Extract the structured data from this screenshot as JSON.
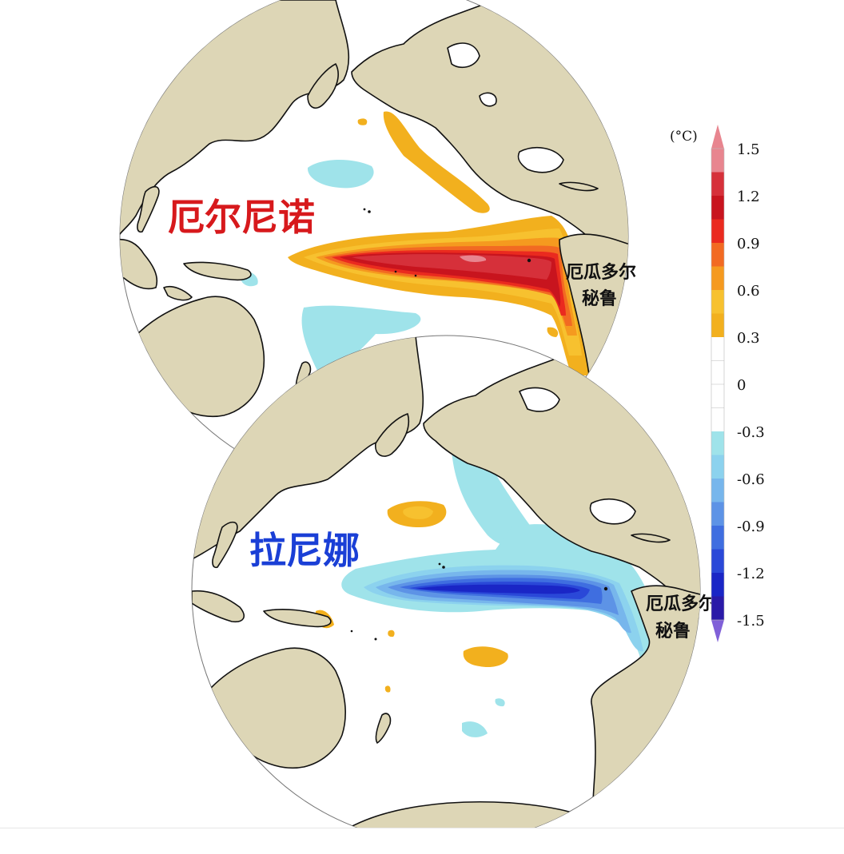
{
  "maps": [
    {
      "id": "el-nino",
      "title": "厄尔尼诺",
      "title_color": "#d7191c",
      "place_labels": [
        "厄瓜多尔",
        "秘鲁"
      ]
    },
    {
      "id": "la-nina",
      "title": "拉尼娜",
      "title_color": "#1a3fd6",
      "place_labels": [
        "厄瓜多尔",
        "秘鲁"
      ]
    }
  ],
  "colorbar": {
    "unit": "(°C)",
    "tick_labels": [
      "1.5",
      "1.2",
      "0.9",
      "0.6",
      "0.3",
      "0",
      "-0.3",
      "-0.6",
      "-0.9",
      "-1.2",
      "-1.5"
    ],
    "tick_values": [
      1.5,
      1.2,
      0.9,
      0.6,
      0.3,
      0,
      -0.3,
      -0.6,
      -0.9,
      -1.2,
      -1.5
    ],
    "levels_top_to_bottom": [
      {
        "range": [
          1.35,
          1.5
        ],
        "color": "#e8858f"
      },
      {
        "range": [
          1.2,
          1.35
        ],
        "color": "#d6303a"
      },
      {
        "range": [
          1.05,
          1.2
        ],
        "color": "#c8141e"
      },
      {
        "range": [
          0.9,
          1.05
        ],
        "color": "#ea2a1f"
      },
      {
        "range": [
          0.75,
          0.9
        ],
        "color": "#f26a22"
      },
      {
        "range": [
          0.6,
          0.75
        ],
        "color": "#f59a1f"
      },
      {
        "range": [
          0.45,
          0.6
        ],
        "color": "#f7c12f"
      },
      {
        "range": [
          0.3,
          0.45
        ],
        "color": "#f2b01e"
      },
      {
        "range": [
          -0.3,
          0.3
        ],
        "color": "#ffffff"
      },
      {
        "range": [
          -0.45,
          -0.3
        ],
        "color": "#9fe3ea"
      },
      {
        "range": [
          -0.6,
          -0.45
        ],
        "color": "#8cd2ee"
      },
      {
        "range": [
          -0.75,
          -0.6
        ],
        "color": "#77b6ec"
      },
      {
        "range": [
          -0.9,
          -0.75
        ],
        "color": "#5d93e6"
      },
      {
        "range": [
          -1.05,
          -0.9
        ],
        "color": "#3f6ee0"
      },
      {
        "range": [
          -1.2,
          -1.05
        ],
        "color": "#2a48d8"
      },
      {
        "range": [
          -1.35,
          -1.2
        ],
        "color": "#1a26c6"
      },
      {
        "range": [
          -1.5,
          -1.35
        ],
        "color": "#2a1aa8"
      }
    ],
    "cap_top_color": "#e8858f",
    "cap_bottom_color": "#8060d8"
  },
  "colors": {
    "land": "#ddd6b6",
    "coast": "#111111",
    "ocean": "#ffffff"
  }
}
